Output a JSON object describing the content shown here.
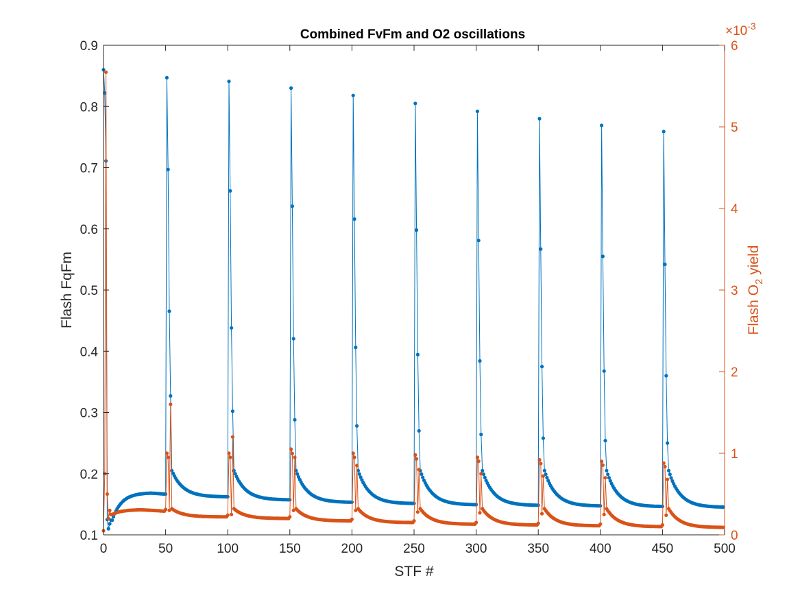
{
  "chart_data": {
    "type": "line",
    "title": "Combined FvFm and O2 oscillations",
    "xlabel": "STF #",
    "ylabel_left": "Flash FqFm",
    "ylabel_right_prefix": "Flash O",
    "ylabel_right_sub": "2",
    "ylabel_right_suffix": " yield",
    "right_exponent_base": "×10",
    "right_exponent_power": "-3",
    "xlim": [
      0,
      500
    ],
    "ylim_left": [
      0.1,
      0.9
    ],
    "ylim_right": [
      0,
      6
    ],
    "xticks": [
      0,
      50,
      100,
      150,
      200,
      250,
      300,
      350,
      400,
      450,
      500
    ],
    "yticks_left": [
      0.1,
      0.2,
      0.3,
      0.4,
      0.5,
      0.6,
      0.7,
      0.8,
      0.9
    ],
    "yticks_right": [
      0,
      1,
      2,
      3,
      4,
      5,
      6
    ],
    "colors": {
      "left": "#0072BD",
      "right": "#D95319"
    },
    "first_segment": {
      "fqfm": [
        0.86,
        0.822,
        0.711,
        0.125,
        0.11,
        0.118,
        0.124
      ],
      "o2": [
        0.05,
        0.75,
        5.67,
        0.5,
        0.2,
        0.3,
        0.25
      ],
      "fqfm_plateau": 0.169,
      "o2_plateau": 0.31
    },
    "repeat_segments": {
      "period": 50,
      "fqfm_peaks": [
        0.847,
        0.841,
        0.83,
        0.818,
        0.805,
        0.792,
        0.78,
        0.769,
        0.759
      ],
      "fqfm_second": [
        0.697,
        0.662,
        0.637,
        0.616,
        0.598,
        0.581,
        0.567,
        0.555,
        0.542
      ],
      "fqfm_fourth": [
        0.327,
        0.302,
        0.288,
        0.278,
        0.27,
        0.264,
        0.258,
        0.254,
        0.25
      ],
      "fqfm_tail_end": [
        0.162,
        0.157,
        0.153,
        0.151,
        0.149,
        0.148,
        0.147,
        0.146,
        0.145
      ],
      "o2_first": [
        1.0,
        1.0,
        1.05,
        1.0,
        0.98,
        0.95,
        0.92,
        0.9,
        0.88
      ],
      "o2_third": [
        0.3,
        0.25,
        0.3,
        0.3,
        0.28,
        0.27,
        0.26,
        0.25,
        0.24
      ],
      "o2_fourth": [
        1.6,
        1.2,
        0.95,
        0.85,
        0.8,
        0.75,
        0.72,
        0.7,
        0.68
      ],
      "o2_tail_end": [
        0.22,
        0.2,
        0.17,
        0.15,
        0.13,
        0.12,
        0.11,
        0.1,
        0.09
      ]
    }
  }
}
